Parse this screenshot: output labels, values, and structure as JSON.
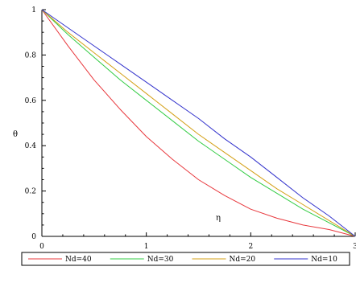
{
  "chart_data": {
    "type": "line",
    "title": "",
    "xlabel": "η",
    "ylabel": "θ",
    "xlim": [
      0,
      3
    ],
    "ylim": [
      0,
      1
    ],
    "x_ticks": [
      "0",
      "1",
      "2",
      "3"
    ],
    "y_ticks": [
      "0",
      "0.2",
      "0.4",
      "0.6",
      "0.8",
      "1"
    ],
    "x_tick_values": [
      0,
      1,
      2,
      3
    ],
    "y_tick_values": [
      0,
      0.2,
      0.4,
      0.6,
      0.8,
      1
    ],
    "grid": false,
    "legend_position": "bottom",
    "x": [
      0,
      0.25,
      0.5,
      0.75,
      1.0,
      1.25,
      1.5,
      1.75,
      2.0,
      2.25,
      2.5,
      2.75,
      3.0
    ],
    "series": [
      {
        "name": "Nd=40",
        "color": "#e8383d",
        "values": [
          1.0,
          0.84,
          0.69,
          0.56,
          0.44,
          0.34,
          0.25,
          0.18,
          0.12,
          0.08,
          0.05,
          0.03,
          0.0
        ]
      },
      {
        "name": "Nd=30",
        "color": "#33cc44",
        "values": [
          1.0,
          0.89,
          0.79,
          0.69,
          0.6,
          0.51,
          0.42,
          0.34,
          0.26,
          0.19,
          0.12,
          0.06,
          0.0
        ]
      },
      {
        "name": "Nd=20",
        "color": "#d4a017",
        "values": [
          1.0,
          0.9,
          0.81,
          0.72,
          0.63,
          0.54,
          0.45,
          0.37,
          0.29,
          0.21,
          0.14,
          0.07,
          0.0
        ]
      },
      {
        "name": "Nd=10",
        "color": "#3333cc",
        "values": [
          1.0,
          0.92,
          0.84,
          0.76,
          0.68,
          0.6,
          0.52,
          0.43,
          0.35,
          0.26,
          0.17,
          0.09,
          0.0
        ]
      }
    ]
  }
}
